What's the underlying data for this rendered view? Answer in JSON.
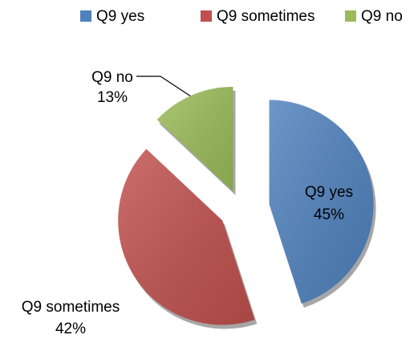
{
  "chart_data": {
    "type": "pie",
    "categories": [
      "Q9 yes",
      "Q9 sometimes",
      "Q9 no"
    ],
    "values": [
      45,
      42,
      13
    ],
    "value_labels": [
      "45%",
      "42%",
      "13%"
    ],
    "colors": [
      "#4f81bd",
      "#c0504d",
      "#9bbb59"
    ],
    "legend": "top-right"
  }
}
